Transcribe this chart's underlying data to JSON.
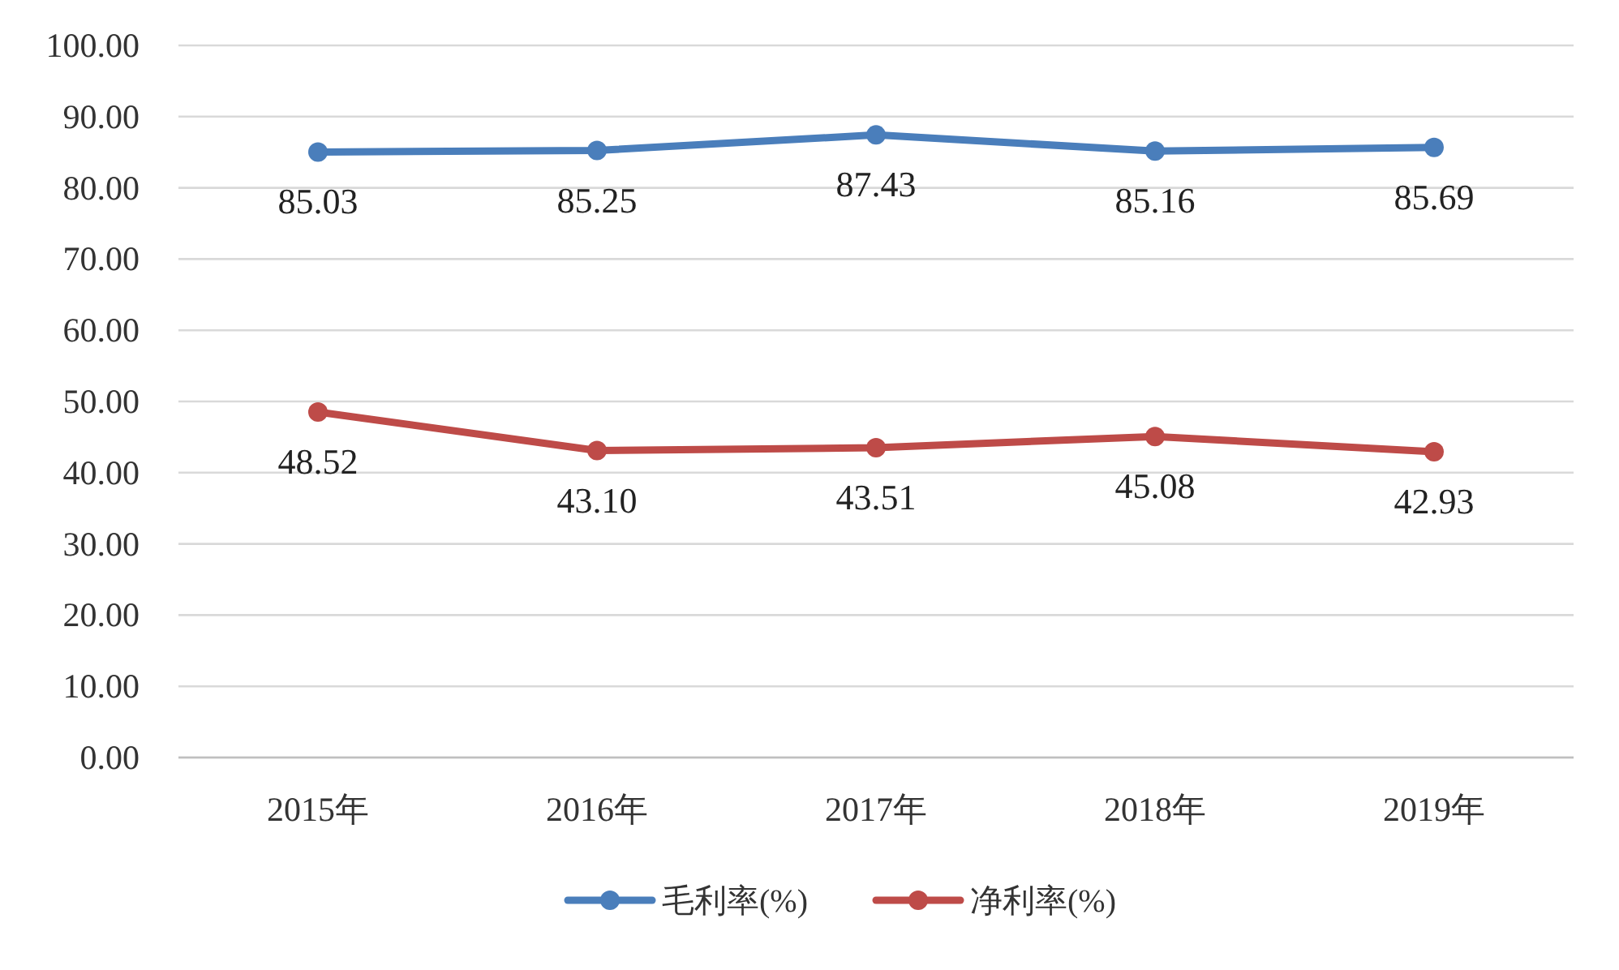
{
  "chart_data": {
    "type": "line",
    "categories": [
      "2015年",
      "2016年",
      "2017年",
      "2018年",
      "2019年"
    ],
    "series": [
      {
        "name": "毛利率(%)",
        "color": "#4a7ebb",
        "values": [
          85.03,
          85.25,
          87.43,
          85.16,
          85.69
        ],
        "value_labels": [
          "85.03",
          "85.25",
          "87.43",
          "85.16",
          "85.69"
        ]
      },
      {
        "name": "净利率(%)",
        "color": "#be4b48",
        "values": [
          48.52,
          43.1,
          43.51,
          45.08,
          42.93
        ],
        "value_labels": [
          "48.52",
          "43.10",
          "43.51",
          "45.08",
          "42.93"
        ]
      }
    ],
    "ylim": [
      0,
      100
    ],
    "yticks": [
      {
        "value": 0,
        "label": "0.00"
      },
      {
        "value": 10,
        "label": "10.00"
      },
      {
        "value": 20,
        "label": "20.00"
      },
      {
        "value": 30,
        "label": "30.00"
      },
      {
        "value": 40,
        "label": "40.00"
      },
      {
        "value": 50,
        "label": "50.00"
      },
      {
        "value": 60,
        "label": "60.00"
      },
      {
        "value": 70,
        "label": "70.00"
      },
      {
        "value": 80,
        "label": "80.00"
      },
      {
        "value": 90,
        "label": "90.00"
      },
      {
        "value": 100,
        "label": "100.00"
      }
    ],
    "grid": "y",
    "legend": "bottom",
    "marker": "circle"
  }
}
